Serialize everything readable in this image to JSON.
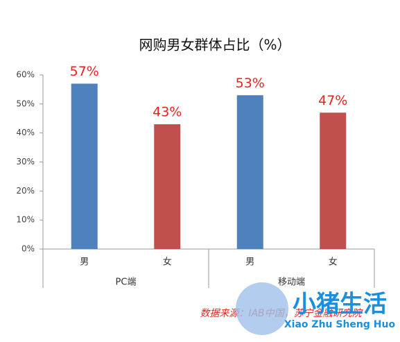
{
  "chart_data": {
    "type": "bar",
    "title": "网购男女群体占比（%）",
    "categories": [
      "男",
      "女",
      "男",
      "女"
    ],
    "group_labels": [
      "PC端",
      "移动端"
    ],
    "values": [
      57,
      43,
      53,
      47
    ],
    "value_labels": [
      "57%",
      "43%",
      "53%",
      "47%"
    ],
    "colors": [
      "#4f81bd",
      "#c0504d",
      "#4f81bd",
      "#c0504d"
    ],
    "ylim": [
      0,
      60
    ],
    "yticks": [
      {
        "value": 0,
        "label": "0%"
      },
      {
        "value": 10,
        "label": "10%"
      },
      {
        "value": 20,
        "label": "20%"
      },
      {
        "value": 30,
        "label": "30%"
      },
      {
        "value": 40,
        "label": "40%"
      },
      {
        "value": 50,
        "label": "50%"
      },
      {
        "value": 60,
        "label": "60%"
      }
    ],
    "source": "数据来源：IAB中国，苏宁金融研究院",
    "watermark": {
      "title": "小猪生活",
      "subtitle": "Xiao Zhu Sheng Huo"
    }
  }
}
